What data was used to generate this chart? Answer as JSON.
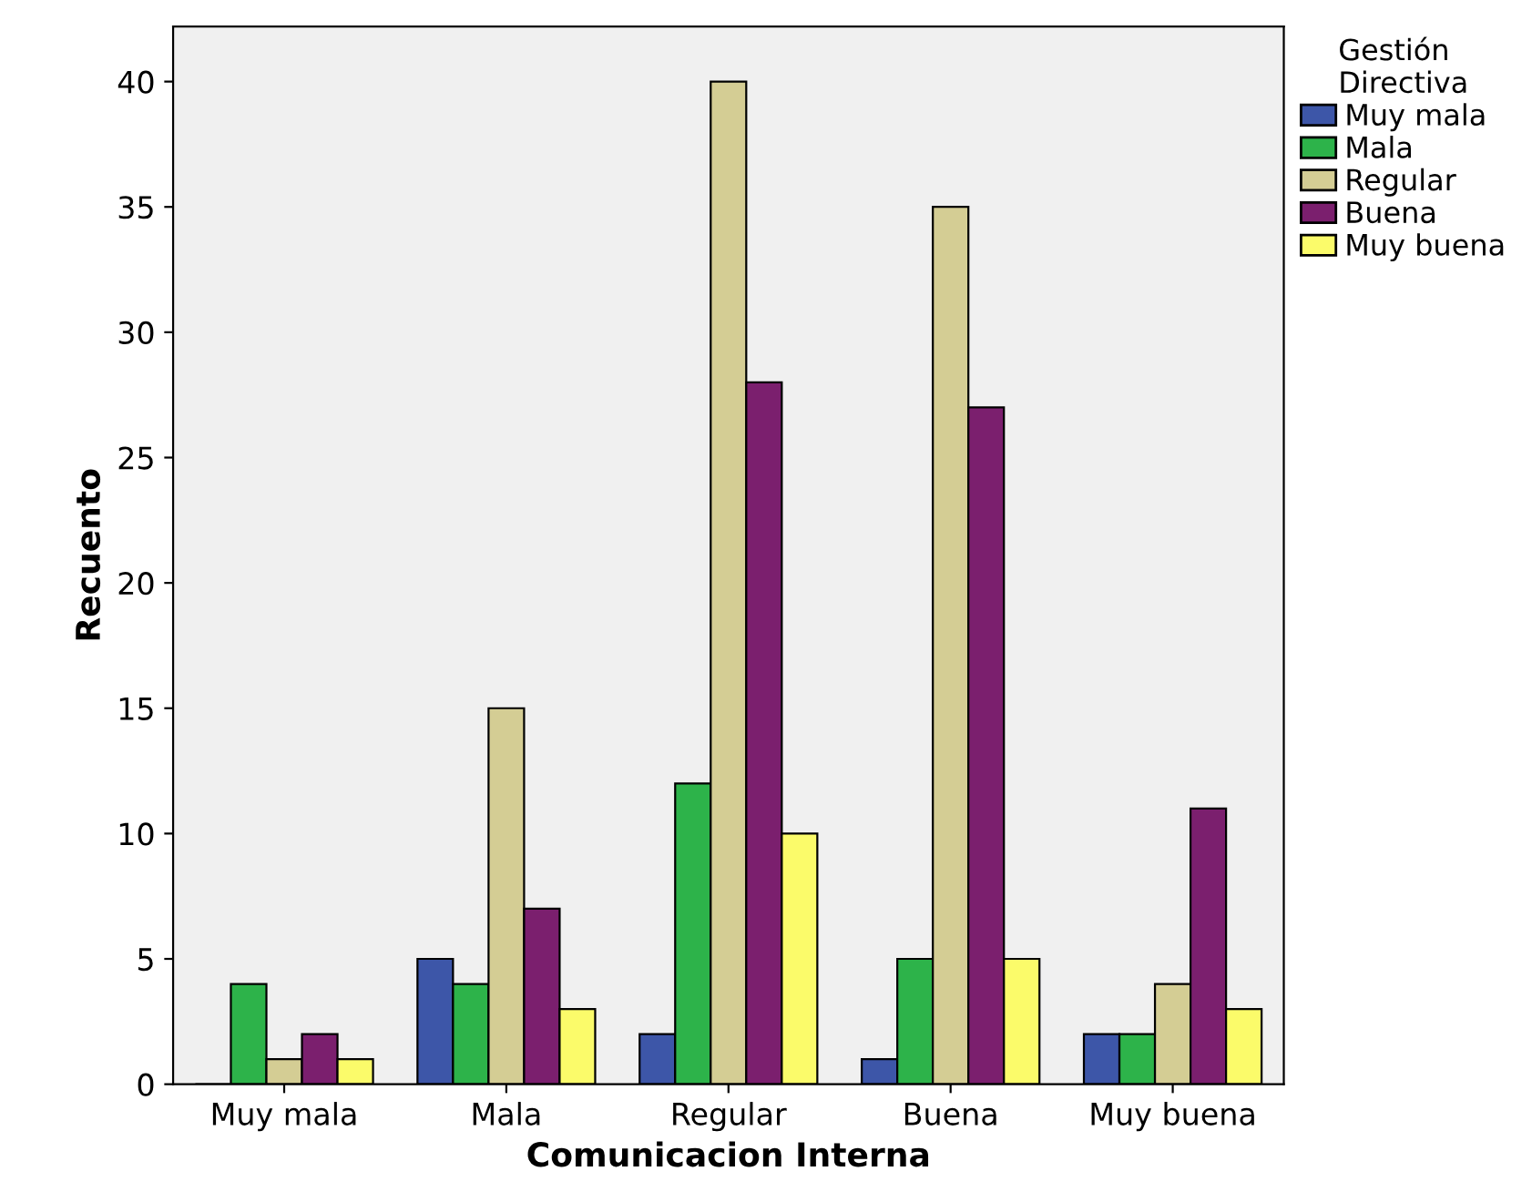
{
  "chart_data": {
    "type": "bar",
    "xlabel": "Comunicacion Interna",
    "ylabel": "Recuento",
    "legend_title": "Gestión\nDirectiva",
    "legend": "right",
    "grid": false,
    "categories": [
      "Muy mala",
      "Mala",
      "Regular",
      "Buena",
      "Muy buena"
    ],
    "ylim": [
      0,
      42.2
    ],
    "yticks": [
      0,
      5,
      10,
      15,
      20,
      25,
      30,
      35,
      40
    ],
    "series": [
      {
        "name": "Muy mala",
        "color": "#3d56a8",
        "values": [
          0,
          5,
          2,
          1,
          2
        ]
      },
      {
        "name": "Mala",
        "color": "#2db34a",
        "values": [
          4,
          4,
          12,
          5,
          2
        ]
      },
      {
        "name": "Regular",
        "color": "#d4cd94",
        "values": [
          1,
          15,
          40,
          35,
          4
        ]
      },
      {
        "name": "Buena",
        "color": "#7b1f6e",
        "values": [
          2,
          7,
          28,
          27,
          11
        ]
      },
      {
        "name": "Muy buena",
        "color": "#fbfb6a",
        "values": [
          1,
          3,
          10,
          5,
          3
        ]
      }
    ]
  }
}
